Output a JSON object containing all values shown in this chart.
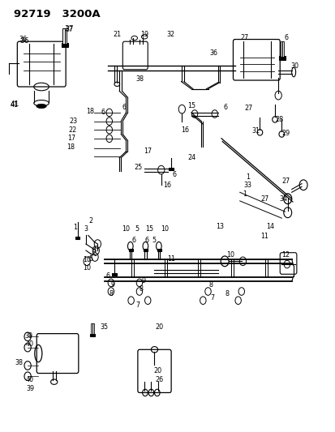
{
  "title": "92719   3200A",
  "bg_color": "#ffffff",
  "line_color": "#000000",
  "text_color": "#000000",
  "figsize": [
    4.14,
    5.33
  ],
  "dpi": 100
}
